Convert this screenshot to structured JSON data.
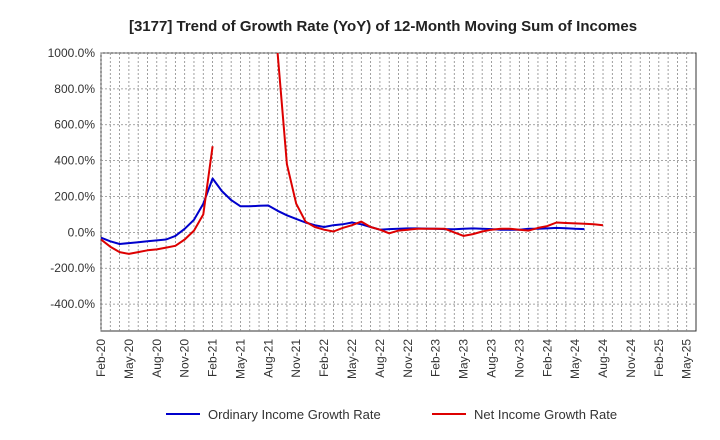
{
  "chart_data": {
    "type": "line",
    "title": "[3177]  Trend of Growth Rate (YoY) of 12-Month Moving Sum of Incomes",
    "xlabel": "",
    "ylabel": "",
    "ylim": [
      -550,
      1000
    ],
    "y_ticks": [
      1000,
      800,
      600,
      400,
      200,
      0,
      -200,
      -400
    ],
    "y_tick_labels": [
      "1000.0%",
      "800.0%",
      "600.0%",
      "400.0%",
      "200.0%",
      "0.0%",
      "-200.0%",
      "-400.0%"
    ],
    "x_tick_labels": [
      "Feb-20",
      "May-20",
      "Aug-20",
      "Nov-20",
      "Feb-21",
      "May-21",
      "Aug-21",
      "Nov-21",
      "Feb-22",
      "May-22",
      "Aug-22",
      "Nov-22",
      "Feb-23",
      "May-23",
      "Aug-23",
      "Nov-23",
      "Feb-24",
      "May-24",
      "Aug-24",
      "Nov-24",
      "Feb-25",
      "May-25"
    ],
    "grid": true,
    "legend_position": "bottom",
    "series": [
      {
        "name": "Ordinary Income Growth Rate",
        "color": "#0000cc",
        "values": [
          -30,
          -50,
          -65,
          -60,
          -55,
          -50,
          -45,
          -40,
          -20,
          20,
          70,
          160,
          300,
          230,
          180,
          145,
          145,
          148,
          150,
          120,
          95,
          75,
          55,
          40,
          30,
          40,
          45,
          55,
          45,
          30,
          15,
          18,
          20,
          22,
          22,
          21,
          20,
          18,
          17,
          20,
          22,
          20,
          18,
          15,
          15,
          15,
          20,
          20,
          22,
          25,
          23,
          20,
          18
        ]
      },
      {
        "name": "Net Income Growth Rate",
        "color": "#dd0000",
        "values": [
          -40,
          -80,
          -110,
          -120,
          -110,
          -100,
          -95,
          -85,
          -75,
          -40,
          10,
          100,
          480,
          null,
          null,
          null,
          null,
          null,
          null,
          1000,
          380,
          160,
          60,
          30,
          15,
          5,
          25,
          40,
          60,
          30,
          15,
          -5,
          10,
          15,
          20,
          20,
          20,
          20,
          0,
          -20,
          -10,
          5,
          15,
          20,
          20,
          15,
          10,
          25,
          35,
          55,
          52,
          50,
          48,
          45,
          40
        ]
      }
    ]
  }
}
